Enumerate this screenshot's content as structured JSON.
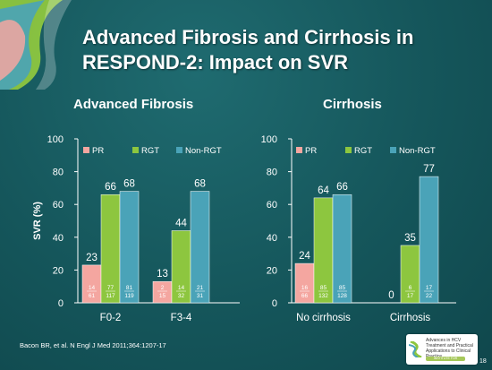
{
  "slide": {
    "title": "Advanced Fibrosis and Cirrhosis in RESPOND-2: Impact on SVR",
    "citation": "Bacon BR, et al. N Engl J Med 2011;364:1207-17",
    "page_number": "18",
    "badge": {
      "text": "Advances in HCV Treatment and Practical Applications to Clinical Practice",
      "pill": "INSTITUTE FOR GASTROENTEROLOGY"
    }
  },
  "colors": {
    "PR": "#f4a6a0",
    "RGT": "#8dc63f",
    "Non-RGT": "#4aa3b8"
  },
  "chart_data": [
    {
      "type": "bar",
      "title": "Advanced Fibrosis",
      "ylabel": "SVR (%)",
      "ylim": [
        0,
        100
      ],
      "yticks": [
        0,
        20,
        40,
        60,
        80,
        100
      ],
      "categories": [
        "F0-2",
        "F3-4"
      ],
      "legend": [
        "PR",
        "RGT",
        "Non-RGT"
      ],
      "series": [
        {
          "name": "PR",
          "values": [
            23,
            13
          ],
          "fractions": [
            [
              "14",
              "61"
            ],
            [
              "2",
              "15"
            ]
          ]
        },
        {
          "name": "RGT",
          "values": [
            66,
            44
          ],
          "fractions": [
            [
              "77",
              "117"
            ],
            [
              "14",
              "32"
            ]
          ]
        },
        {
          "name": "Non-RGT",
          "values": [
            68,
            68
          ],
          "fractions": [
            [
              "81",
              "119"
            ],
            [
              "21",
              "31"
            ]
          ]
        }
      ]
    },
    {
      "type": "bar",
      "title": "Cirrhosis",
      "ylabel": "",
      "ylim": [
        0,
        100
      ],
      "yticks": [
        0,
        20,
        40,
        60,
        80,
        100
      ],
      "categories": [
        "No cirrhosis",
        "Cirrhosis"
      ],
      "legend": [
        "PR",
        "RGT",
        "Non-RGT"
      ],
      "series": [
        {
          "name": "PR",
          "values": [
            24,
            0
          ],
          "fractions": [
            [
              "16",
              "66"
            ],
            null
          ]
        },
        {
          "name": "RGT",
          "values": [
            64,
            35
          ],
          "fractions": [
            [
              "85",
              "132"
            ],
            [
              "6",
              "17"
            ]
          ]
        },
        {
          "name": "Non-RGT",
          "values": [
            66,
            77
          ],
          "fractions": [
            [
              "85",
              "128"
            ],
            [
              "17",
              "22"
            ]
          ]
        }
      ]
    }
  ]
}
